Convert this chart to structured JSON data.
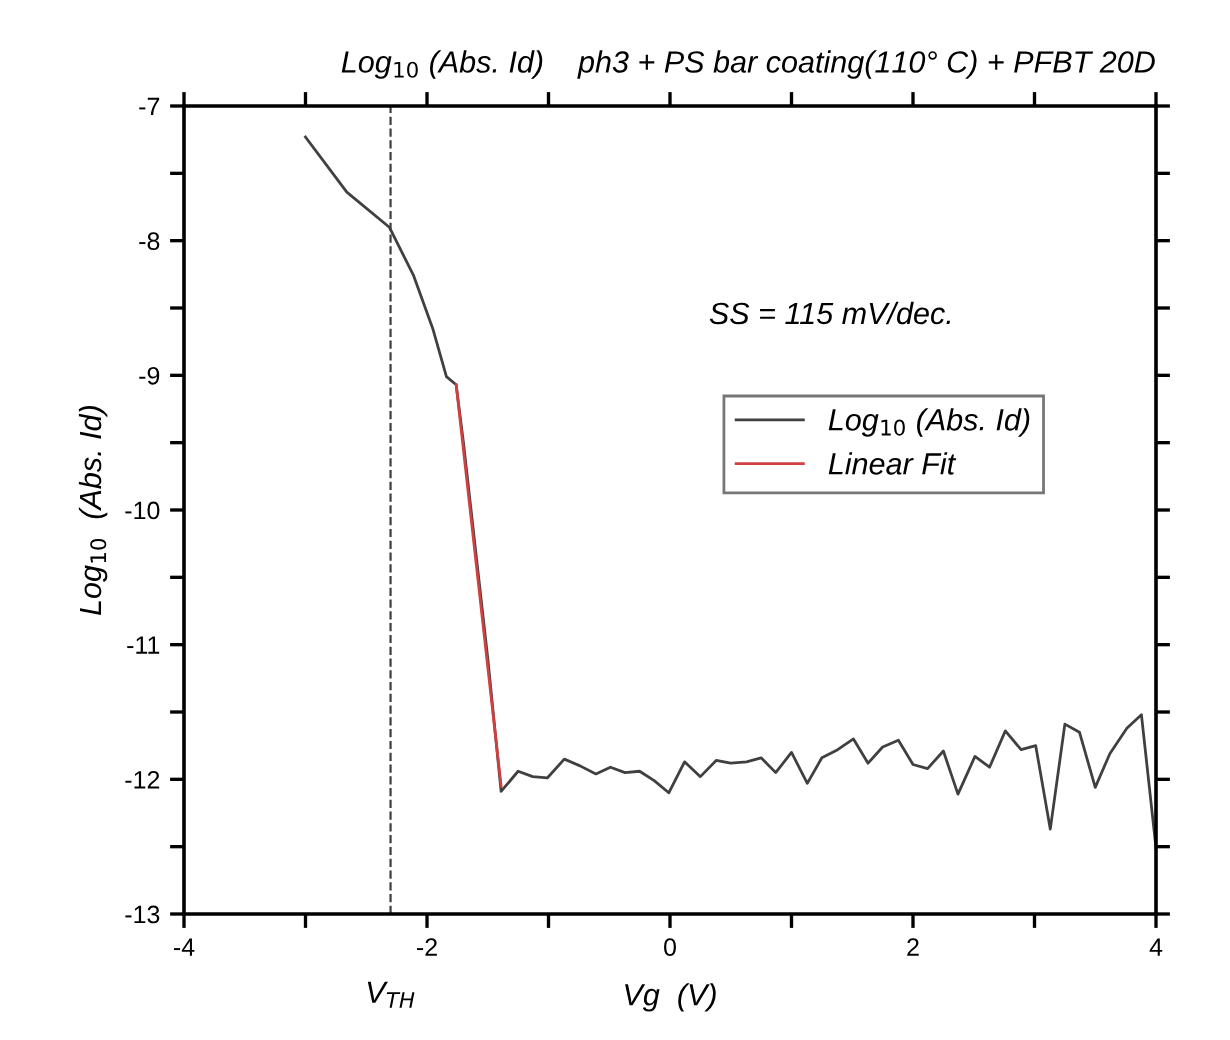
{
  "chart_data": {
    "type": "line",
    "title": "Log$_{10}$ (Abs. Id)    ph3 + PS bar coating(110° C) + PFBT 20D",
    "xlabel": "Vg  (V)",
    "ylabel": "Log$_{10}$  (Abs. Id)",
    "xlim": [
      -4,
      4
    ],
    "ylim": [
      -13,
      -7
    ],
    "xticks": [
      -4,
      {
        "value": -3,
        "label": null
      },
      -2,
      {
        "value": -1,
        "label": null
      },
      0,
      {
        "value": 1,
        "label": null
      },
      2,
      {
        "value": 3,
        "label": null
      },
      4
    ],
    "yticks": [
      -13,
      {
        "value": -12.5,
        "label": null
      },
      -12,
      {
        "value": -11.5,
        "label": null
      },
      -11,
      {
        "value": -10.5,
        "label": null
      },
      -10,
      {
        "value": -9.5,
        "label": null
      },
      -9,
      {
        "value": -8.5,
        "label": null
      },
      -8,
      {
        "value": -7.5,
        "label": null
      },
      -7
    ],
    "series": [
      {
        "name": "Log$_{10}$ (Abs. Id)",
        "color": "#404040",
        "x": [
          -3.0,
          -2.66,
          -2.31,
          -2.11,
          -1.95,
          -1.84,
          -1.76,
          -1.7,
          -1.6,
          -1.5,
          -1.39,
          -1.25,
          -1.13,
          -1.01,
          -0.87,
          -0.74,
          -0.61,
          -0.49,
          -0.37,
          -0.25,
          -0.13,
          -0.01,
          0.12,
          0.25,
          0.38,
          0.5,
          0.63,
          0.75,
          0.87,
          1.0,
          1.13,
          1.25,
          1.38,
          1.51,
          1.63,
          1.75,
          1.88,
          2.0,
          2.12,
          2.25,
          2.37,
          2.51,
          2.63,
          2.76,
          2.89,
          3.01,
          3.13,
          3.25,
          3.37,
          3.5,
          3.62,
          3.76,
          3.88,
          4.0
        ],
        "values": [
          -7.23,
          -7.64,
          -7.9,
          -8.26,
          -8.66,
          -9.01,
          -9.07,
          -9.5,
          -10.3,
          -11.1,
          -12.09,
          -11.94,
          -11.98,
          -11.99,
          -11.85,
          -11.9,
          -11.96,
          -11.91,
          -11.95,
          -11.94,
          -12.01,
          -12.1,
          -11.87,
          -11.98,
          -11.86,
          -11.88,
          -11.87,
          -11.84,
          -11.95,
          -11.8,
          -12.03,
          -11.84,
          -11.78,
          -11.7,
          -11.88,
          -11.76,
          -11.71,
          -11.89,
          -11.92,
          -11.79,
          -12.11,
          -11.83,
          -11.91,
          -11.64,
          -11.78,
          -11.75,
          -12.37,
          -11.59,
          -11.65,
          -12.06,
          -11.81,
          -11.62,
          -11.52,
          -12.51
        ]
      },
      {
        "name": "Linear Fit",
        "color": "#d04040",
        "x": [
          -1.76,
          -1.39
        ],
        "values": [
          -9.07,
          -12.05
        ]
      }
    ],
    "ref_lines": [
      {
        "axis": "x",
        "value": -2.3,
        "label": "V$_{TH}$",
        "color": "#404040",
        "line_style": "dashed"
      }
    ],
    "annotations": [
      "SS = 115 mV/dec."
    ],
    "legend": "right",
    "grid": false,
    "marker": "none",
    "line_style": "solid"
  }
}
